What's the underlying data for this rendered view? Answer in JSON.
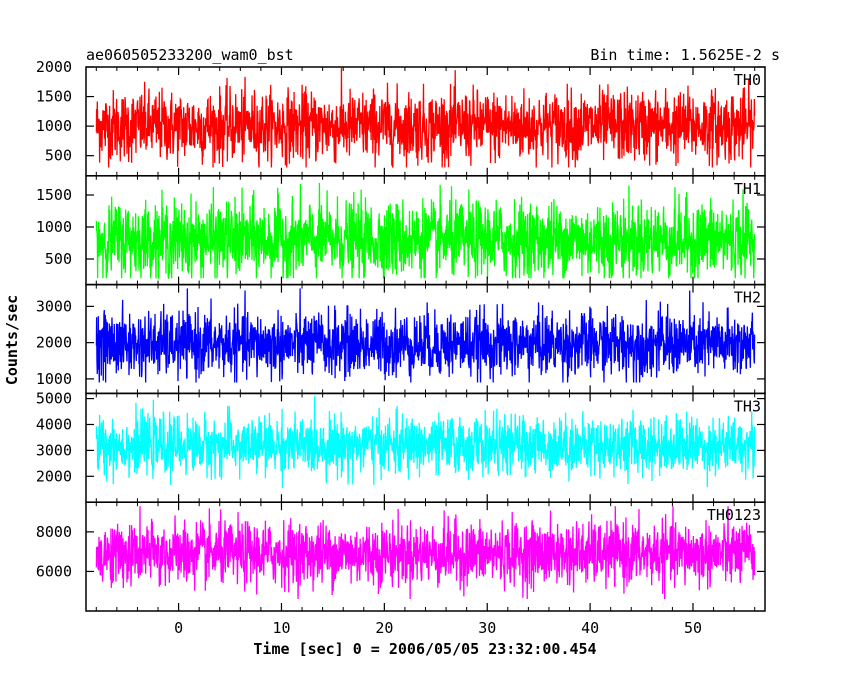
{
  "chart_data": {
    "type": "line",
    "title": "ae060505233200_wam0_bst",
    "bin_time_label": "Bin time: 1.5625E-2 s",
    "xlabel": "Time [sec] 0 = 2006/05/05 23:32:00.454",
    "ylabel": "Counts/sec",
    "xlim": [
      -9,
      57
    ],
    "x_data_range": [
      -8,
      56
    ],
    "xticks": [
      0,
      10,
      20,
      30,
      40,
      50
    ],
    "panels": [
      {
        "name": "TH0",
        "color": "#ff0000",
        "ylim": [
          160,
          2000
        ],
        "yticks": [
          500,
          1000,
          1500,
          2000
        ],
        "mean": 1000,
        "spread": 300,
        "min": 300,
        "max": 2000
      },
      {
        "name": "TH1",
        "color": "#00ff00",
        "ylim": [
          100,
          1800
        ],
        "yticks": [
          500,
          1000,
          1500
        ],
        "mean": 800,
        "spread": 300,
        "min": 200,
        "max": 1750
      },
      {
        "name": "TH2",
        "color": "#0000ff",
        "ylim": [
          600,
          3600
        ],
        "yticks": [
          1000,
          2000,
          3000
        ],
        "mean": 1950,
        "spread": 450,
        "min": 900,
        "max": 3500
      },
      {
        "name": "TH3",
        "color": "#00ffff",
        "ylim": [
          1000,
          5200
        ],
        "yticks": [
          2000,
          3000,
          4000,
          5000
        ],
        "mean": 3200,
        "spread": 550,
        "min": 1400,
        "max": 5100
      },
      {
        "name": "TH0123",
        "color": "#ff00ff",
        "ylim": [
          4000,
          9500
        ],
        "yticks": [
          6000,
          8000
        ],
        "mean": 6900,
        "spread": 800,
        "min": 4600,
        "max": 9300
      }
    ]
  }
}
